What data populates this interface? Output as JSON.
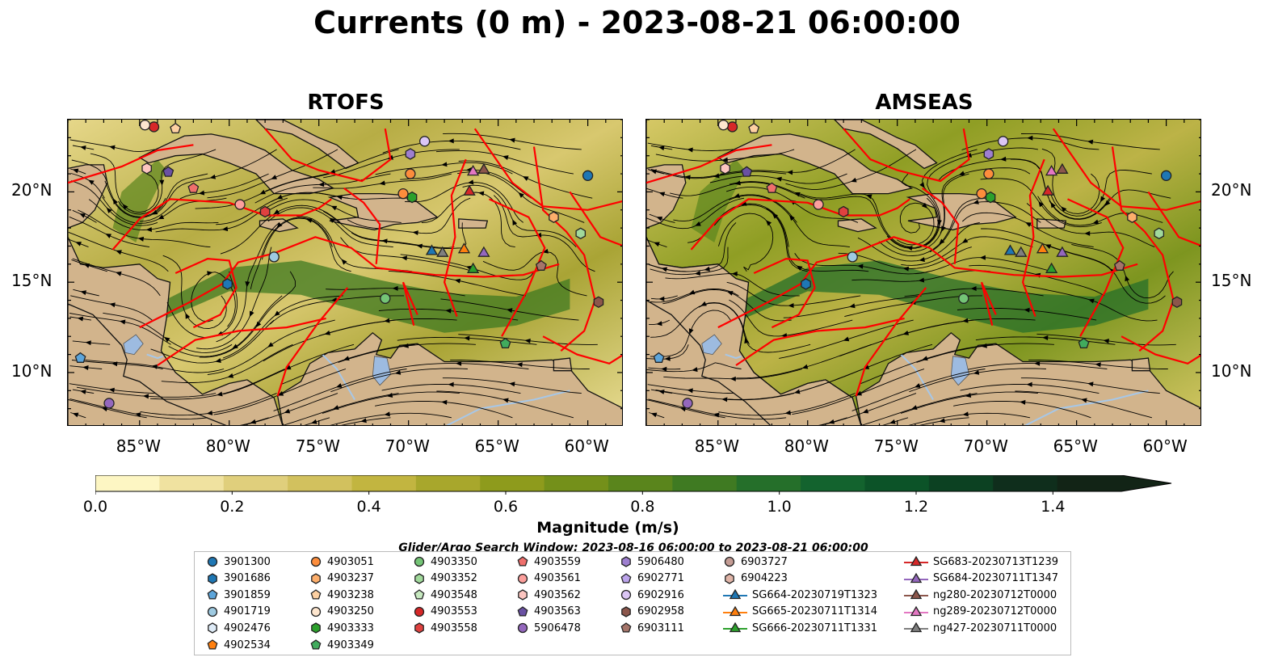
{
  "title": "Currents (0 m) - 2023-08-21 06:00:00",
  "panels": [
    {
      "id": "rtofs",
      "title": "RTOFS"
    },
    {
      "id": "amseas",
      "title": "AMSEAS"
    }
  ],
  "map": {
    "lon_range": [
      -89,
      -58
    ],
    "lat_range": [
      7,
      24
    ],
    "lon_ticks": [
      "85°W",
      "80°W",
      "75°W",
      "70°W",
      "65°W",
      "60°W"
    ],
    "lat_ticks": [
      "20°N",
      "15°N",
      "10°N"
    ],
    "colors": {
      "land": "#d2b48c",
      "ocean_masked": "#9dbbe0",
      "eez_line": "#ff0000",
      "rivers": "#a6c7e8"
    }
  },
  "colorbar": {
    "label": "Magnitude (m/s)",
    "min": 0.0,
    "max": 1.5,
    "extend": "max",
    "ticks": [
      "0.0",
      "0.2",
      "0.4",
      "0.6",
      "0.8",
      "1.0",
      "1.2",
      "1.4"
    ],
    "colors": [
      "#fdf6c3",
      "#f0e2a0",
      "#e0cf7c",
      "#d2c15e",
      "#c2b540",
      "#a8a72c",
      "#8e9b1c",
      "#74901a",
      "#5a851c",
      "#3f7a22",
      "#256f2a",
      "#13632e",
      "#0c5328",
      "#0c4122",
      "#0f2e1c",
      "#122416"
    ]
  },
  "search_window": "Glider/Argo Search Window: 2023-08-16 06:00:00 to 2023-08-21 06:00:00",
  "legend": [
    {
      "label": "3901300",
      "marker": "circle",
      "color": "#1f77b4"
    },
    {
      "label": "3901686",
      "marker": "hexagon",
      "color": "#1f77b4"
    },
    {
      "label": "3901859",
      "marker": "pentagon",
      "color": "#5da5da"
    },
    {
      "label": "4901719",
      "marker": "circle",
      "color": "#9ecae1"
    },
    {
      "label": "4902476",
      "marker": "hexagon",
      "color": "#deebf7"
    },
    {
      "label": "4902534",
      "marker": "pentagon",
      "color": "#ff7f0e"
    },
    {
      "label": "4903051",
      "marker": "circle",
      "color": "#fd8d3c"
    },
    {
      "label": "4903237",
      "marker": "hexagon",
      "color": "#fdae6b"
    },
    {
      "label": "4903238",
      "marker": "pentagon",
      "color": "#fdd0a2"
    },
    {
      "label": "4903250",
      "marker": "circle",
      "color": "#fee6ce"
    },
    {
      "label": "4903333",
      "marker": "hexagon",
      "color": "#2ca02c"
    },
    {
      "label": "4903349",
      "marker": "pentagon",
      "color": "#41ab5d"
    },
    {
      "label": "4903350",
      "marker": "circle",
      "color": "#74c476"
    },
    {
      "label": "4903352",
      "marker": "hexagon",
      "color": "#a1d99b"
    },
    {
      "label": "4903548",
      "marker": "pentagon",
      "color": "#c7e9c0"
    },
    {
      "label": "4903553",
      "marker": "circle",
      "color": "#d62728"
    },
    {
      "label": "4903558",
      "marker": "hexagon",
      "color": "#e0413f"
    },
    {
      "label": "4903559",
      "marker": "pentagon",
      "color": "#ef6f6c"
    },
    {
      "label": "4903561",
      "marker": "circle",
      "color": "#fc9f9c"
    },
    {
      "label": "4903562",
      "marker": "hexagon",
      "color": "#fcc5c0"
    },
    {
      "label": "4903563",
      "marker": "pentagon",
      "color": "#6a51a3"
    },
    {
      "label": "5906478",
      "marker": "circle",
      "color": "#9467bd"
    },
    {
      "label": "5906480",
      "marker": "hexagon",
      "color": "#9e7fd0"
    },
    {
      "label": "6902771",
      "marker": "pentagon",
      "color": "#bca4ec"
    },
    {
      "label": "6902916",
      "marker": "circle",
      "color": "#dbc6f5"
    },
    {
      "label": "6902958",
      "marker": "hexagon",
      "color": "#8c564b"
    },
    {
      "label": "6903111",
      "marker": "pentagon",
      "color": "#a5756a"
    },
    {
      "label": "6903727",
      "marker": "circle",
      "color": "#c49c94"
    },
    {
      "label": "6904223",
      "marker": "hexagon",
      "color": "#e0b5a8"
    },
    {
      "label": "SG664-20230719T1323",
      "marker": "triangle-line",
      "color": "#1f77b4"
    },
    {
      "label": "SG665-20230711T1314",
      "marker": "triangle-line",
      "color": "#ff7f0e"
    },
    {
      "label": "SG666-20230711T1331",
      "marker": "triangle-line",
      "color": "#2ca02c"
    },
    {
      "label": "SG683-20230713T1239",
      "marker": "triangle-line",
      "color": "#d62728"
    },
    {
      "label": "SG684-20230711T1347",
      "marker": "triangle-line",
      "color": "#9467bd"
    },
    {
      "label": "ng280-20230712T0000",
      "marker": "triangle-line",
      "color": "#8c564b"
    },
    {
      "label": "ng289-20230712T0000",
      "marker": "triangle-line",
      "color": "#e377c2"
    },
    {
      "label": "ng427-20230711T0000",
      "marker": "triangle-line",
      "color": "#7f7f7f"
    }
  ],
  "observations": [
    {
      "id": "4903051",
      "lon": -69.9,
      "lat": 21.0
    },
    {
      "id": "6902916",
      "lon": -69.1,
      "lat": 22.8
    },
    {
      "id": "5906480",
      "lon": -69.9,
      "lat": 22.1
    },
    {
      "id": "3901300",
      "lon": -60.0,
      "lat": 20.9
    },
    {
      "id": "4903237",
      "lon": -61.9,
      "lat": 18.6
    },
    {
      "id": "4903352",
      "lon": -60.4,
      "lat": 17.7
    },
    {
      "id": "6902958",
      "lon": -59.4,
      "lat": 13.9
    },
    {
      "id": "6903111",
      "lon": -62.6,
      "lat": 15.9
    },
    {
      "id": "4903349",
      "lon": -64.6,
      "lat": 11.6
    },
    {
      "id": "4903350",
      "lon": -71.3,
      "lat": 14.1
    },
    {
      "id": "4903333",
      "lon": -69.8,
      "lat": 19.7
    },
    {
      "id": "4903051b",
      "lon": -70.3,
      "lat": 19.9
    },
    {
      "id": "4901719",
      "lon": -77.5,
      "lat": 16.4
    },
    {
      "id": "3901686",
      "lon": -80.1,
      "lat": 14.9
    },
    {
      "id": "3901859",
      "lon": -88.3,
      "lat": 10.8
    },
    {
      "id": "5906478",
      "lon": -86.7,
      "lat": 8.3
    },
    {
      "id": "4903561",
      "lon": -79.4,
      "lat": 19.3
    },
    {
      "id": "4903558",
      "lon": -78.0,
      "lat": 18.9
    },
    {
      "id": "4903559",
      "lon": -82.0,
      "lat": 20.2
    },
    {
      "id": "4903562",
      "lon": -84.6,
      "lat": 21.3
    },
    {
      "id": "4903563",
      "lon": -83.4,
      "lat": 21.1
    },
    {
      "id": "4903238",
      "lon": -83.0,
      "lat": 23.5
    },
    {
      "id": "4903553",
      "lon": -84.2,
      "lat": 23.6
    },
    {
      "id": "4903250",
      "lon": -84.7,
      "lat": 23.7
    },
    {
      "id": "SG664-20230719T1323",
      "lon": -68.7,
      "lat": 16.7
    },
    {
      "id": "ng427-20230711T0000",
      "lon": -68.1,
      "lat": 16.6
    },
    {
      "id": "SG665-20230711T1314",
      "lon": -66.9,
      "lat": 16.8
    },
    {
      "id": "SG666-20230711T1331",
      "lon": -66.4,
      "lat": 15.7
    },
    {
      "id": "SG684-20230711T1347",
      "lon": -65.8,
      "lat": 16.6
    },
    {
      "id": "SG683-20230713T1239",
      "lon": -66.6,
      "lat": 20.0
    },
    {
      "id": "ng289-20230712T0000",
      "lon": -66.4,
      "lat": 21.1
    },
    {
      "id": "ng280-20230712T0000",
      "lon": -65.8,
      "lat": 21.2
    }
  ]
}
